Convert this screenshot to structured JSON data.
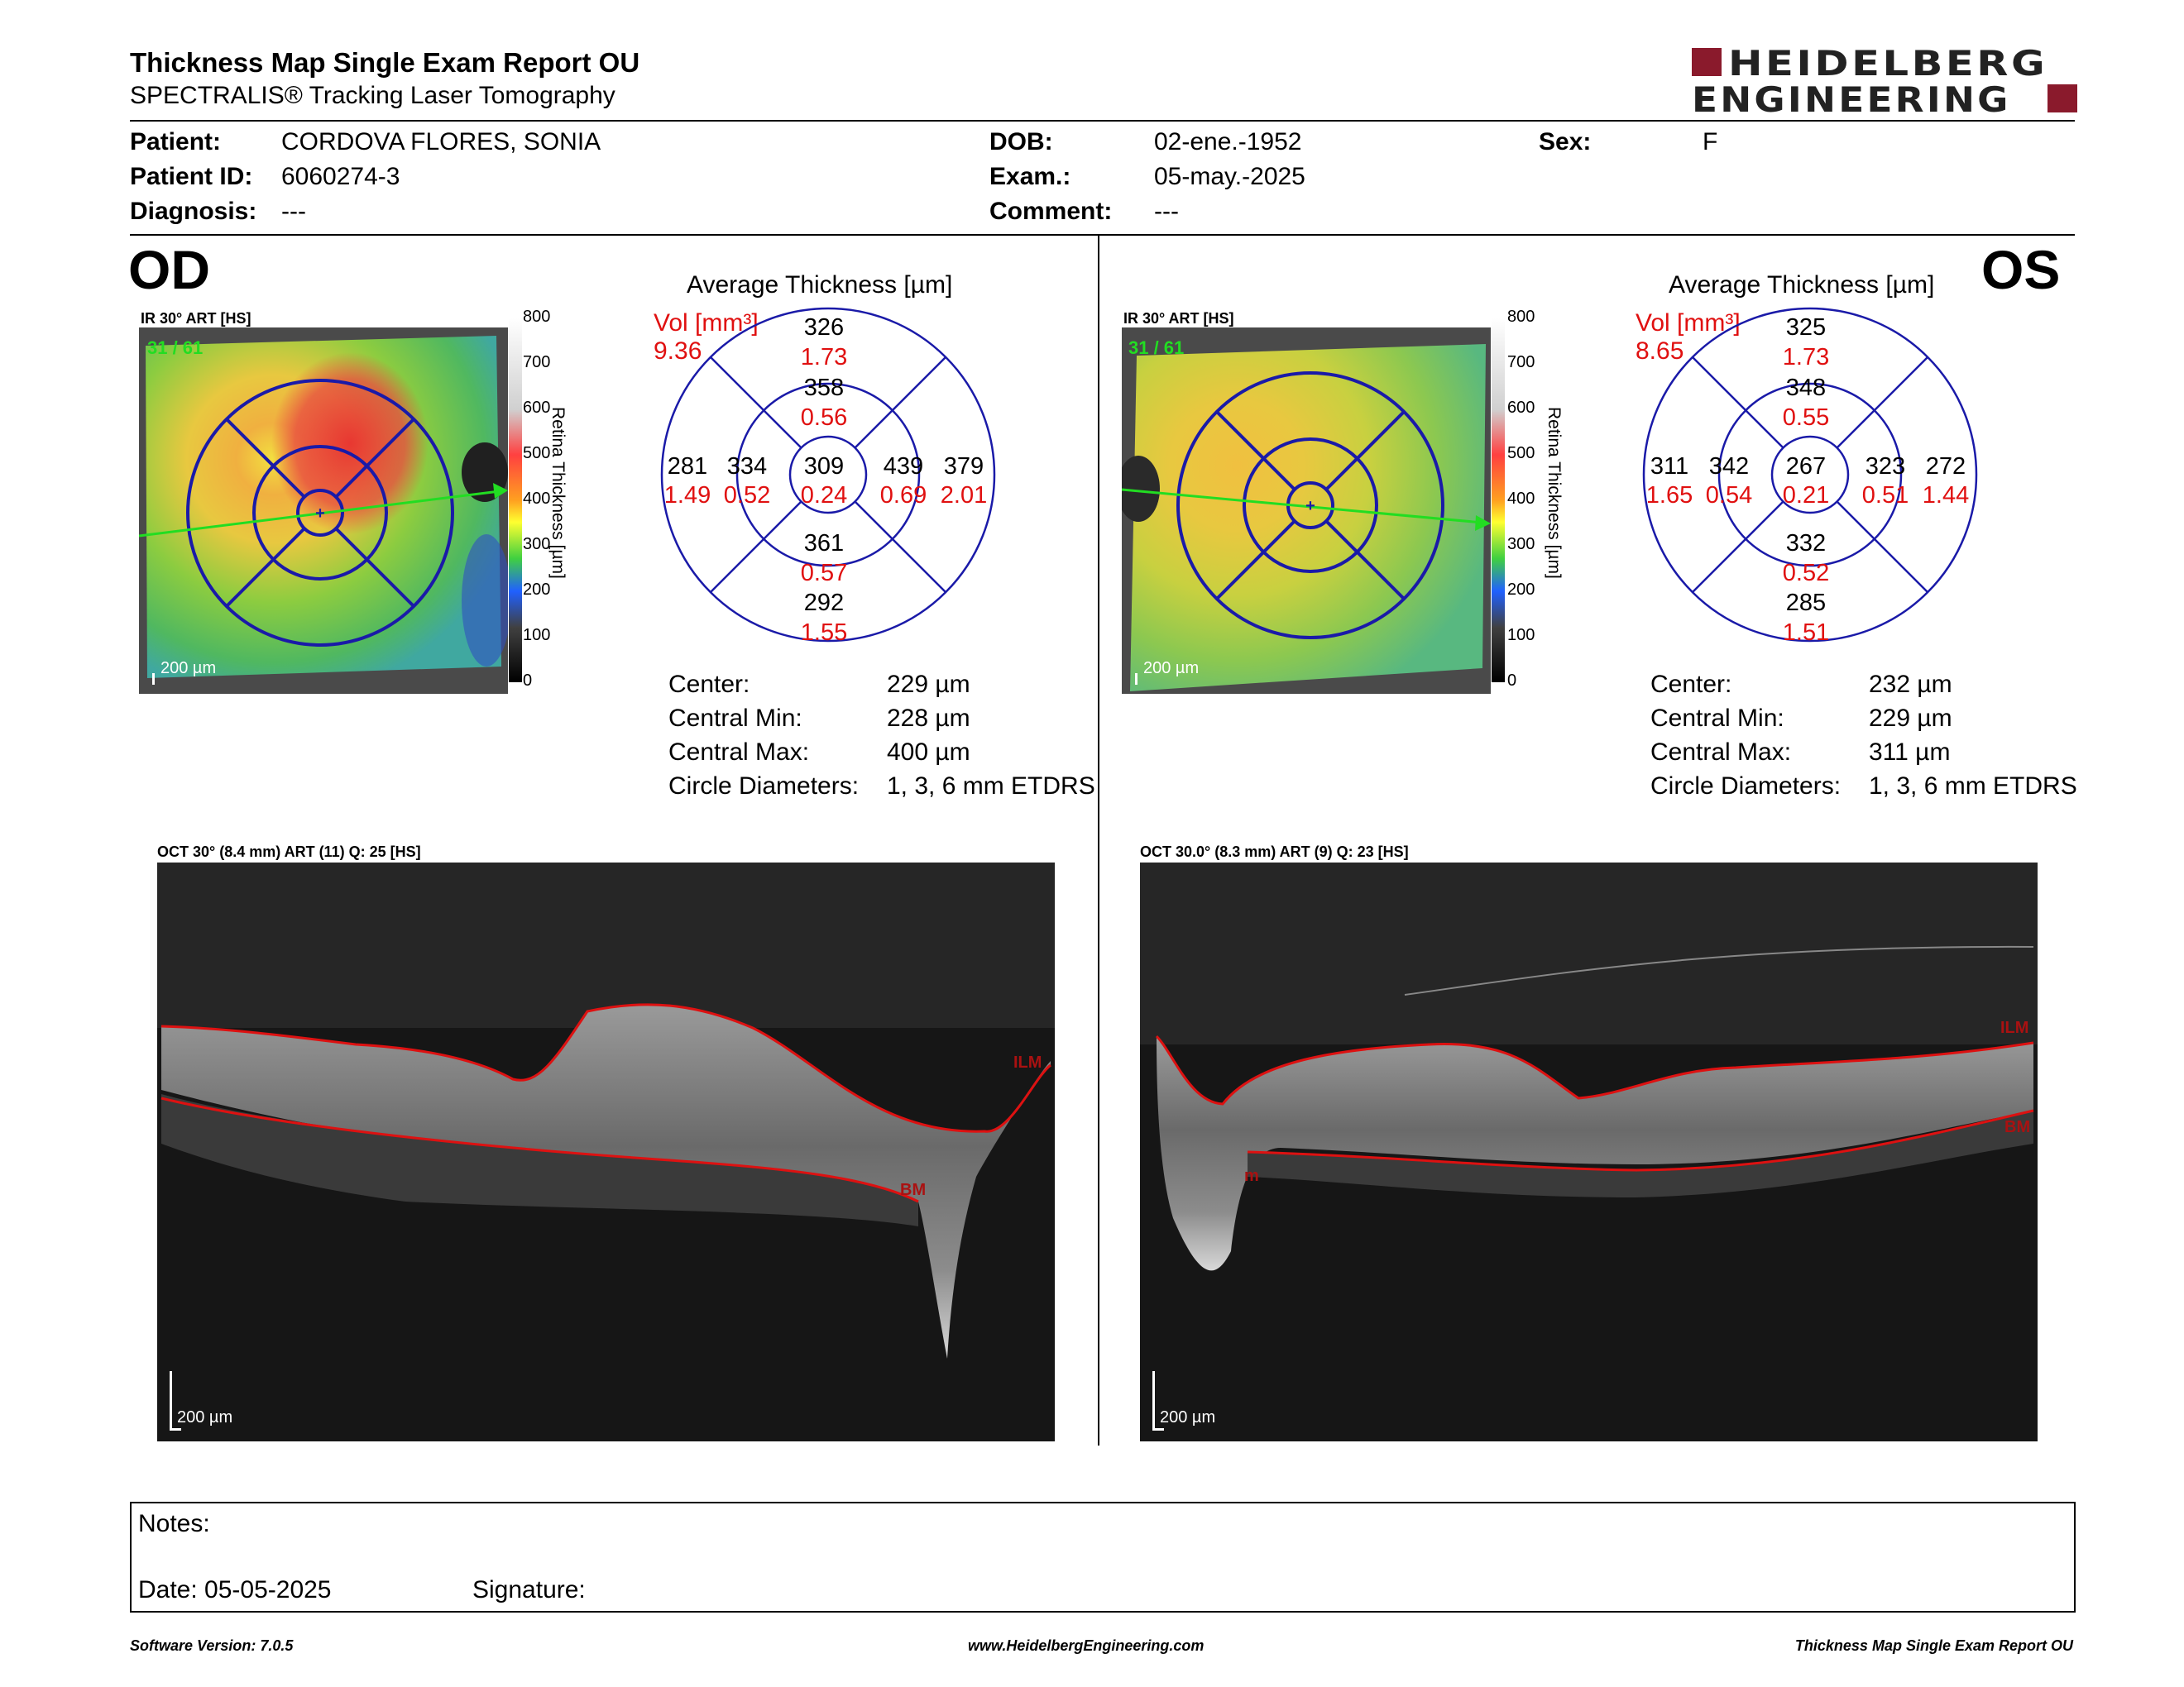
{
  "report": {
    "title": "Thickness Map Single Exam Report OU",
    "subtitle": "SPECTRALIS® Tracking Laser Tomography",
    "brand_line1": "HEIDELBERG",
    "brand_line2": "ENGINEERING"
  },
  "patient": {
    "patient_label": "Patient:",
    "patient_value": "CORDOVA FLORES, SONIA",
    "id_label": "Patient ID:",
    "id_value": "6060274-3",
    "diagnosis_label": "Diagnosis:",
    "diagnosis_value": "---",
    "dob_label": "DOB:",
    "dob_value": "02-ene.-1952",
    "exam_label": "Exam.:",
    "exam_value": "05-may.-2025",
    "comment_label": "Comment:",
    "comment_value": "---",
    "sex_label": "Sex:",
    "sex_value": "F"
  },
  "od": {
    "eye": "OD",
    "image_label": "IR 30° ART [HS]",
    "frame_count": "31 / 61",
    "scale": "200 µm",
    "colorbar_title": "Retina Thickness [µm]",
    "colorbar_ticks": [
      "800",
      "700",
      "600",
      "500",
      "400",
      "300",
      "200",
      "100",
      "0"
    ],
    "grid_title": "Average Thickness [µm]",
    "vol_label": "Vol [mm³]",
    "vol_value": "9.36",
    "grid": {
      "center": {
        "t": "309",
        "v": "0.24"
      },
      "inner_top": {
        "t": "358",
        "v": "0.56"
      },
      "inner_bottom": {
        "t": "361",
        "v": "0.57"
      },
      "inner_left": {
        "t": "334",
        "v": "0.52"
      },
      "inner_right": {
        "t": "439",
        "v": "0.69"
      },
      "outer_top": {
        "t": "326",
        "v": "1.73"
      },
      "outer_bottom": {
        "t": "292",
        "v": "1.55"
      },
      "outer_left": {
        "t": "281",
        "v": "1.49"
      },
      "outer_right": {
        "t": "379",
        "v": "2.01"
      }
    },
    "stats": [
      {
        "label": "Center:",
        "value": "229 µm"
      },
      {
        "label": "Central Min:",
        "value": "228 µm"
      },
      {
        "label": "Central Max:",
        "value": "400 µm"
      },
      {
        "label": "Circle Diameters:",
        "value": "1, 3, 6 mm ETDRS"
      }
    ],
    "oct_label": "OCT 30° (8.4 mm) ART (11) Q: 25 [HS]",
    "oct_scale": "200 µm",
    "ilm": "ILM",
    "bm": "BM"
  },
  "os": {
    "eye": "OS",
    "image_label": "IR 30° ART [HS]",
    "frame_count": "31 / 61",
    "scale": "200 µm",
    "colorbar_title": "Retina Thickness [µm]",
    "colorbar_ticks": [
      "800",
      "700",
      "600",
      "500",
      "400",
      "300",
      "200",
      "100",
      "0"
    ],
    "grid_title": "Average Thickness [µm]",
    "vol_label": "Vol [mm³]",
    "vol_value": "8.65",
    "grid": {
      "center": {
        "t": "267",
        "v": "0.21"
      },
      "inner_top": {
        "t": "348",
        "v": "0.55"
      },
      "inner_bottom": {
        "t": "332",
        "v": "0.52"
      },
      "inner_left": {
        "t": "342",
        "v": "0.54"
      },
      "inner_right": {
        "t": "323",
        "v": "0.51"
      },
      "outer_top": {
        "t": "325",
        "v": "1.73"
      },
      "outer_bottom": {
        "t": "285",
        "v": "1.51"
      },
      "outer_left": {
        "t": "311",
        "v": "1.65"
      },
      "outer_right": {
        "t": "272",
        "v": "1.44"
      }
    },
    "stats": [
      {
        "label": "Center:",
        "value": "232 µm"
      },
      {
        "label": "Central Min:",
        "value": "229 µm"
      },
      {
        "label": "Central Max:",
        "value": "311 µm"
      },
      {
        "label": "Circle Diameters:",
        "value": "1, 3, 6 mm ETDRS"
      }
    ],
    "oct_label": "OCT 30.0° (8.3 mm) ART (9) Q: 23 [HS]",
    "oct_scale": "200 µm",
    "ilm": "ILM",
    "bm": "BM",
    "bm_left": "m"
  },
  "notes": {
    "notes_label": "Notes:",
    "date_label": "Date: 05-05-2025",
    "signature_label": "Signature:"
  },
  "footer": {
    "software": "Software Version: 7.0.5",
    "website": "www.HeidelbergEngineering.com",
    "report_name": "Thickness Map Single Exam Report OU"
  },
  "colors": {
    "grid_blue": "#1a1aa8",
    "red_text": "#e01010",
    "brand_red": "#8a1a2c",
    "scan_green": "#22dd22"
  }
}
